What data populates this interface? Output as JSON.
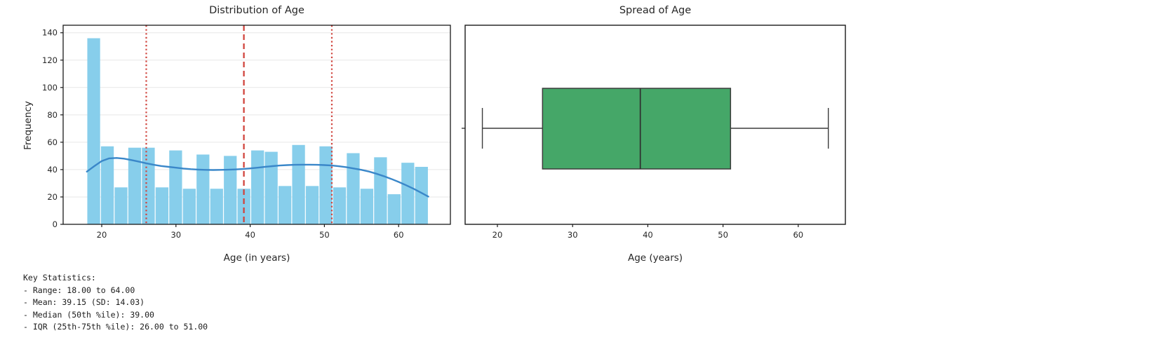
{
  "figure": {
    "background": "#ffffff",
    "grid_color": "#e7e7e7",
    "spine_color": "#1a1a1a",
    "text_color": "#262626"
  },
  "chart_data": [
    {
      "type": "bar",
      "subtype": "histogram-with-kde",
      "title": "Distribution of Age",
      "xlabel": "Age (in years)",
      "ylabel": "Frequency",
      "x_ticks": [
        20,
        30,
        40,
        50,
        60
      ],
      "y_ticks": [
        0,
        20,
        40,
        60,
        80,
        100,
        120,
        140
      ],
      "xlim": [
        14.8,
        65.4
      ],
      "ylim": [
        0,
        145.5
      ],
      "grid": "horizontal-only",
      "bin_start": 18,
      "bin_end": 64,
      "bin_count": 25,
      "counts": [
        136,
        57,
        27,
        56,
        56,
        27,
        54,
        26,
        51,
        26,
        50,
        26,
        54,
        53,
        28,
        58,
        28,
        57,
        27,
        52,
        26,
        49,
        22,
        45,
        42
      ],
      "kde_points": [
        [
          18,
          38.5
        ],
        [
          19,
          42.5
        ],
        [
          20,
          46.2
        ],
        [
          21,
          48.2
        ],
        [
          22,
          48.5
        ],
        [
          23,
          48.0
        ],
        [
          24,
          47.0
        ],
        [
          25,
          45.8
        ],
        [
          26,
          44.6
        ],
        [
          27,
          43.5
        ],
        [
          28,
          42.6
        ],
        [
          29,
          42.0
        ],
        [
          30,
          41.4
        ],
        [
          31,
          40.8
        ],
        [
          32,
          40.3
        ],
        [
          33,
          40.0
        ],
        [
          34,
          39.8
        ],
        [
          35,
          39.7
        ],
        [
          36,
          39.8
        ],
        [
          37,
          39.9
        ],
        [
          38,
          40.1
        ],
        [
          39,
          40.4
        ],
        [
          40,
          40.9
        ],
        [
          41,
          41.4
        ],
        [
          42,
          42.0
        ],
        [
          43,
          42.5
        ],
        [
          44,
          43.0
        ],
        [
          45,
          43.3
        ],
        [
          46,
          43.5
        ],
        [
          47,
          43.6
        ],
        [
          48,
          43.6
        ],
        [
          49,
          43.5
        ],
        [
          50,
          43.3
        ],
        [
          51,
          43.0
        ],
        [
          52,
          42.4
        ],
        [
          53,
          41.7
        ],
        [
          54,
          40.8
        ],
        [
          55,
          39.8
        ],
        [
          56,
          38.6
        ],
        [
          57,
          37.0
        ],
        [
          58,
          35.2
        ],
        [
          59,
          33.2
        ],
        [
          60,
          31.0
        ],
        [
          61,
          28.6
        ],
        [
          62,
          26.0
        ],
        [
          63,
          23.2
        ],
        [
          64,
          20.3
        ]
      ],
      "mean_line": 39.15,
      "quartile_lines": [
        26,
        51
      ],
      "bar_color": "#87CEEB",
      "kde_color": "#3a87c9",
      "marker_color": "#d0453e"
    },
    {
      "type": "box",
      "title": "Spread of Age",
      "xlabel": "Age (years)",
      "x_ticks": [
        20,
        30,
        40,
        50,
        60
      ],
      "xlim": [
        15.7,
        66.3
      ],
      "whisker_low": 18,
      "q1": 26,
      "median": 39,
      "q3": 51,
      "whisker_high": 64,
      "box_color": "#45a768",
      "edge_color": "#3c3c3c"
    }
  ],
  "stats": {
    "lines": [
      "Key Statistics:",
      "- Range: 18.00 to 64.00",
      "- Mean: 39.15 (SD: 14.03)",
      "- Median (50th %ile): 39.00",
      "- IQR (25th-75th %ile): 26.00 to 51.00"
    ],
    "range_low": "18.00",
    "range_high": "64.00",
    "mean": "39.15",
    "sd": "14.03",
    "median": "39.00",
    "q1": "26.00",
    "q3": "51.00"
  }
}
